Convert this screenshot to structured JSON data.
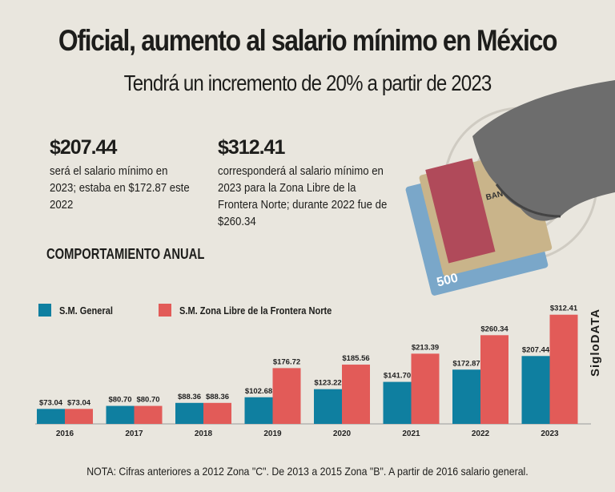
{
  "header": {
    "title": "Oficial, aumento al salario mínimo en México",
    "subtitle": "Tendrá un incremento de 20% a partir de 2023"
  },
  "stats": [
    {
      "value": "$207.44",
      "text": "será el salario mínimo en 2023; estaba en $172.87 este 2022"
    },
    {
      "value": "$312.41",
      "text": "corresponderá al salario mínimo en 2023 para la Zona Libre de la Frontera Norte; durante 2022 fue de $260.34"
    }
  ],
  "section_title": "COMPORTAMIENTO ANUAL",
  "note": "NOTA: Cifras anteriores a 2012 Zona \"C\". De 2013 a 2015 Zona \"B\". A partir de 2016 salario general.",
  "brand": "SigloDATA",
  "illustration": {
    "banknote_text": "BANCO DE MÉXICO",
    "denomination": "500"
  },
  "chart_data": {
    "type": "bar",
    "categories": [
      "2016",
      "2017",
      "2018",
      "2019",
      "2020",
      "2021",
      "2022",
      "2023"
    ],
    "series": [
      {
        "name": "S.M. General",
        "color": "#0f7fa0",
        "values": [
          73.04,
          80.7,
          88.36,
          102.68,
          123.22,
          141.7,
          172.87,
          207.44
        ],
        "labels": [
          "$73.04",
          "$80.70",
          "$88.36",
          "$102.68",
          "$123.22",
          "$141.70",
          "$172.87",
          "$207.44"
        ]
      },
      {
        "name": "S.M. Zona Libre de la Frontera Norte",
        "color": "#e25b58",
        "values": [
          73.04,
          80.7,
          88.36,
          176.72,
          185.56,
          213.39,
          260.34,
          312.41
        ],
        "labels": [
          "$73.04",
          "$80.70",
          "$88.36",
          "$176.72",
          "$185.56",
          "$213.39",
          "$260.34",
          "$312.41"
        ]
      }
    ],
    "legend": "top-left",
    "grid": false,
    "ylim": [
      35,
      320
    ]
  }
}
